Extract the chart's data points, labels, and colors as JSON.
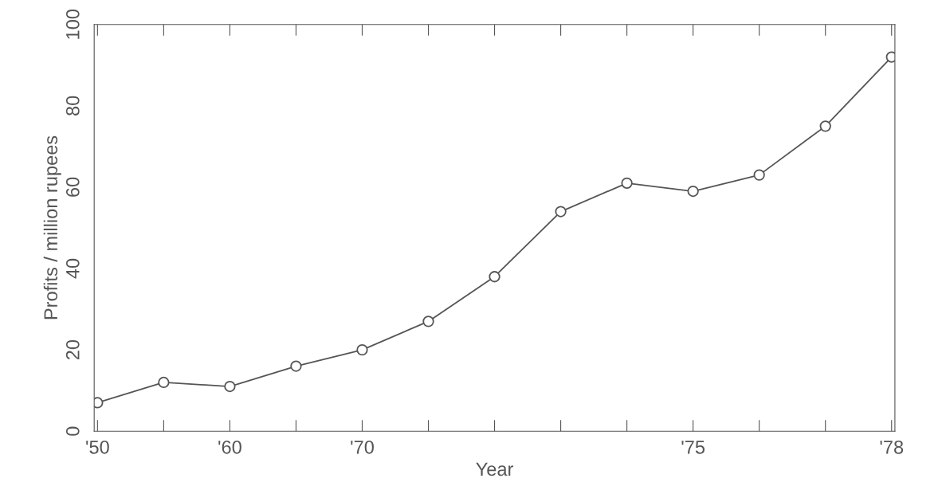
{
  "chart_data": {
    "type": "line",
    "xlabel": "Year",
    "ylabel": "Profits / million rupees",
    "categories": [
      "'50",
      null,
      "'60",
      null,
      "'70",
      null,
      null,
      null,
      null,
      "'75",
      null,
      null,
      "'78"
    ],
    "series": [
      {
        "color": "#555555",
        "values": [
          7,
          12,
          11,
          16,
          20,
          27,
          38,
          54,
          61,
          59,
          63,
          75,
          92
        ]
      }
    ],
    "ylim": [
      0,
      100
    ],
    "yticks": [
      0,
      20,
      40,
      60,
      80,
      100
    ],
    "marker": "circle",
    "line_style": "solid",
    "grid": false,
    "legend": false
  }
}
